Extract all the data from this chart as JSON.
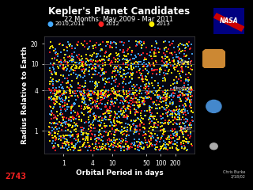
{
  "title": "Kepler's Planet Candidates",
  "subtitle": "22 Months: May 2009 - Mar 2011",
  "xlabel": "Orbital Period in days",
  "ylabel": "Radius Relative to Earth",
  "background_color": "#000000",
  "plot_bg_color": "#050510",
  "colors": {
    "blue": "#44AAFF",
    "red": "#FF2222",
    "yellow": "#FFEE00"
  },
  "legend_labels": [
    "2010,2011",
    "2012",
    "2013"
  ],
  "xmin": 0.4,
  "xmax": 500,
  "ymin": 0.45,
  "ymax": 26,
  "hlines": [
    10.0,
    4.0,
    1.0
  ],
  "hline_labels": [
    "Jupiter",
    "Neptune",
    "Earth"
  ],
  "xticks": [
    1,
    4,
    10,
    50,
    100,
    200
  ],
  "yticks": [
    1,
    4,
    10,
    20
  ],
  "title_color": "#FFFFFF",
  "text_color": "#FFFFFF",
  "grid_color": "#888888",
  "marker_size": 2.5,
  "title_fontsize": 8.5,
  "subtitle_fontsize": 6.0,
  "label_fontsize": 6.5,
  "tick_fontsize": 5.5,
  "legend_fontsize": 5.0,
  "n_blue": 850,
  "n_red": 650,
  "n_yellow": 950
}
